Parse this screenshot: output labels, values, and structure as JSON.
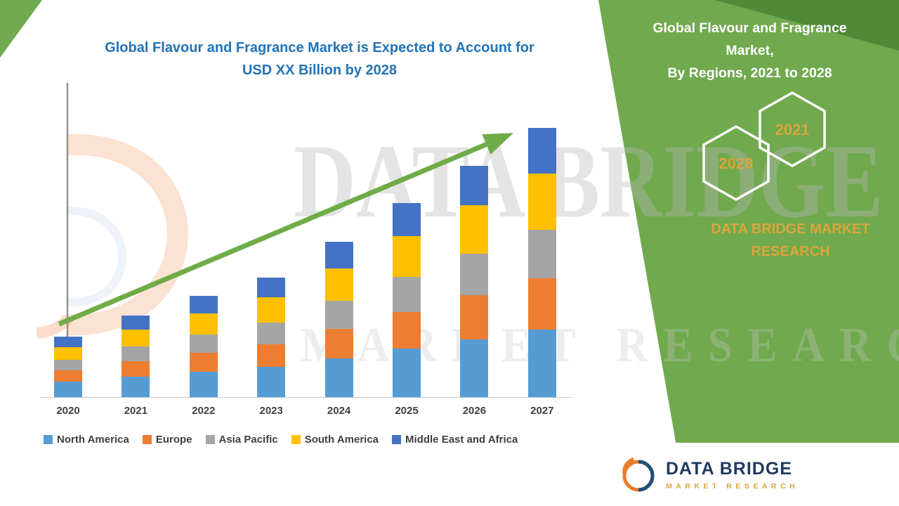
{
  "page": {
    "left_title_line1": "Global Flavour and Fragrance Market is Expected to Account for",
    "left_title_line2": "USD XX Billion by 2028"
  },
  "side_panel": {
    "title_line1": "Global Flavour and Fragrance Market,",
    "title_line2": "By Regions, 2021 to 2028",
    "hex_front_year": "2028",
    "hex_back_year": "2021",
    "brand_line1": "DATA BRIDGE MARKET",
    "brand_line2": "RESEARCH"
  },
  "watermark": {
    "line1": "DATA BRIDGE",
    "line2": "MARKET RESEARCH"
  },
  "footer_logo": {
    "name": "DATA BRIDGE",
    "tagline": "MARKET RESEARCH"
  },
  "colors": {
    "panel_green": "#70A94E",
    "panel_dark_green": "#4E8A37",
    "accent_gold": "#D9A63C",
    "title_blue": "#2173B9",
    "arrow_green": "#6FAC47",
    "logo_navy": "#1E3A5F",
    "logo_orange": "#E87D2E"
  },
  "chart_data": {
    "type": "bar",
    "stacked": true,
    "title": "Global Flavour and Fragrance Market is Expected to Account for USD XX Billion by 2028",
    "categories": [
      "2020",
      "2021",
      "2022",
      "2023",
      "2024",
      "2025",
      "2026",
      "2027"
    ],
    "series": [
      {
        "name": "North America",
        "color": "#559CD5",
        "values": [
          2.2,
          2.9,
          3.6,
          4.3,
          5.5,
          6.9,
          8.2,
          9.6
        ]
      },
      {
        "name": "Europe",
        "color": "#EC7D31",
        "values": [
          1.6,
          2.2,
          2.7,
          3.2,
          4.2,
          5.2,
          6.3,
          7.3
        ]
      },
      {
        "name": "Asia Pacific",
        "color": "#A5A5A5",
        "values": [
          1.5,
          2.1,
          2.6,
          3.1,
          4.0,
          5.0,
          5.9,
          6.9
        ]
      },
      {
        "name": "South America",
        "color": "#FEC000",
        "values": [
          1.8,
          2.4,
          3.0,
          3.6,
          4.6,
          5.8,
          6.9,
          8.0
        ]
      },
      {
        "name": "Middle East and Africa",
        "color": "#4472C4",
        "values": [
          1.5,
          2.0,
          2.5,
          2.8,
          3.8,
          4.7,
          5.6,
          6.5
        ]
      }
    ],
    "value_unit": "USD Billion (exact figures masked as XX; values estimated from bar heights)",
    "value_axis_visible": false,
    "gridlines": false,
    "legend_position": "bottom",
    "annotations": [
      "upward trend arrow across bars"
    ]
  }
}
